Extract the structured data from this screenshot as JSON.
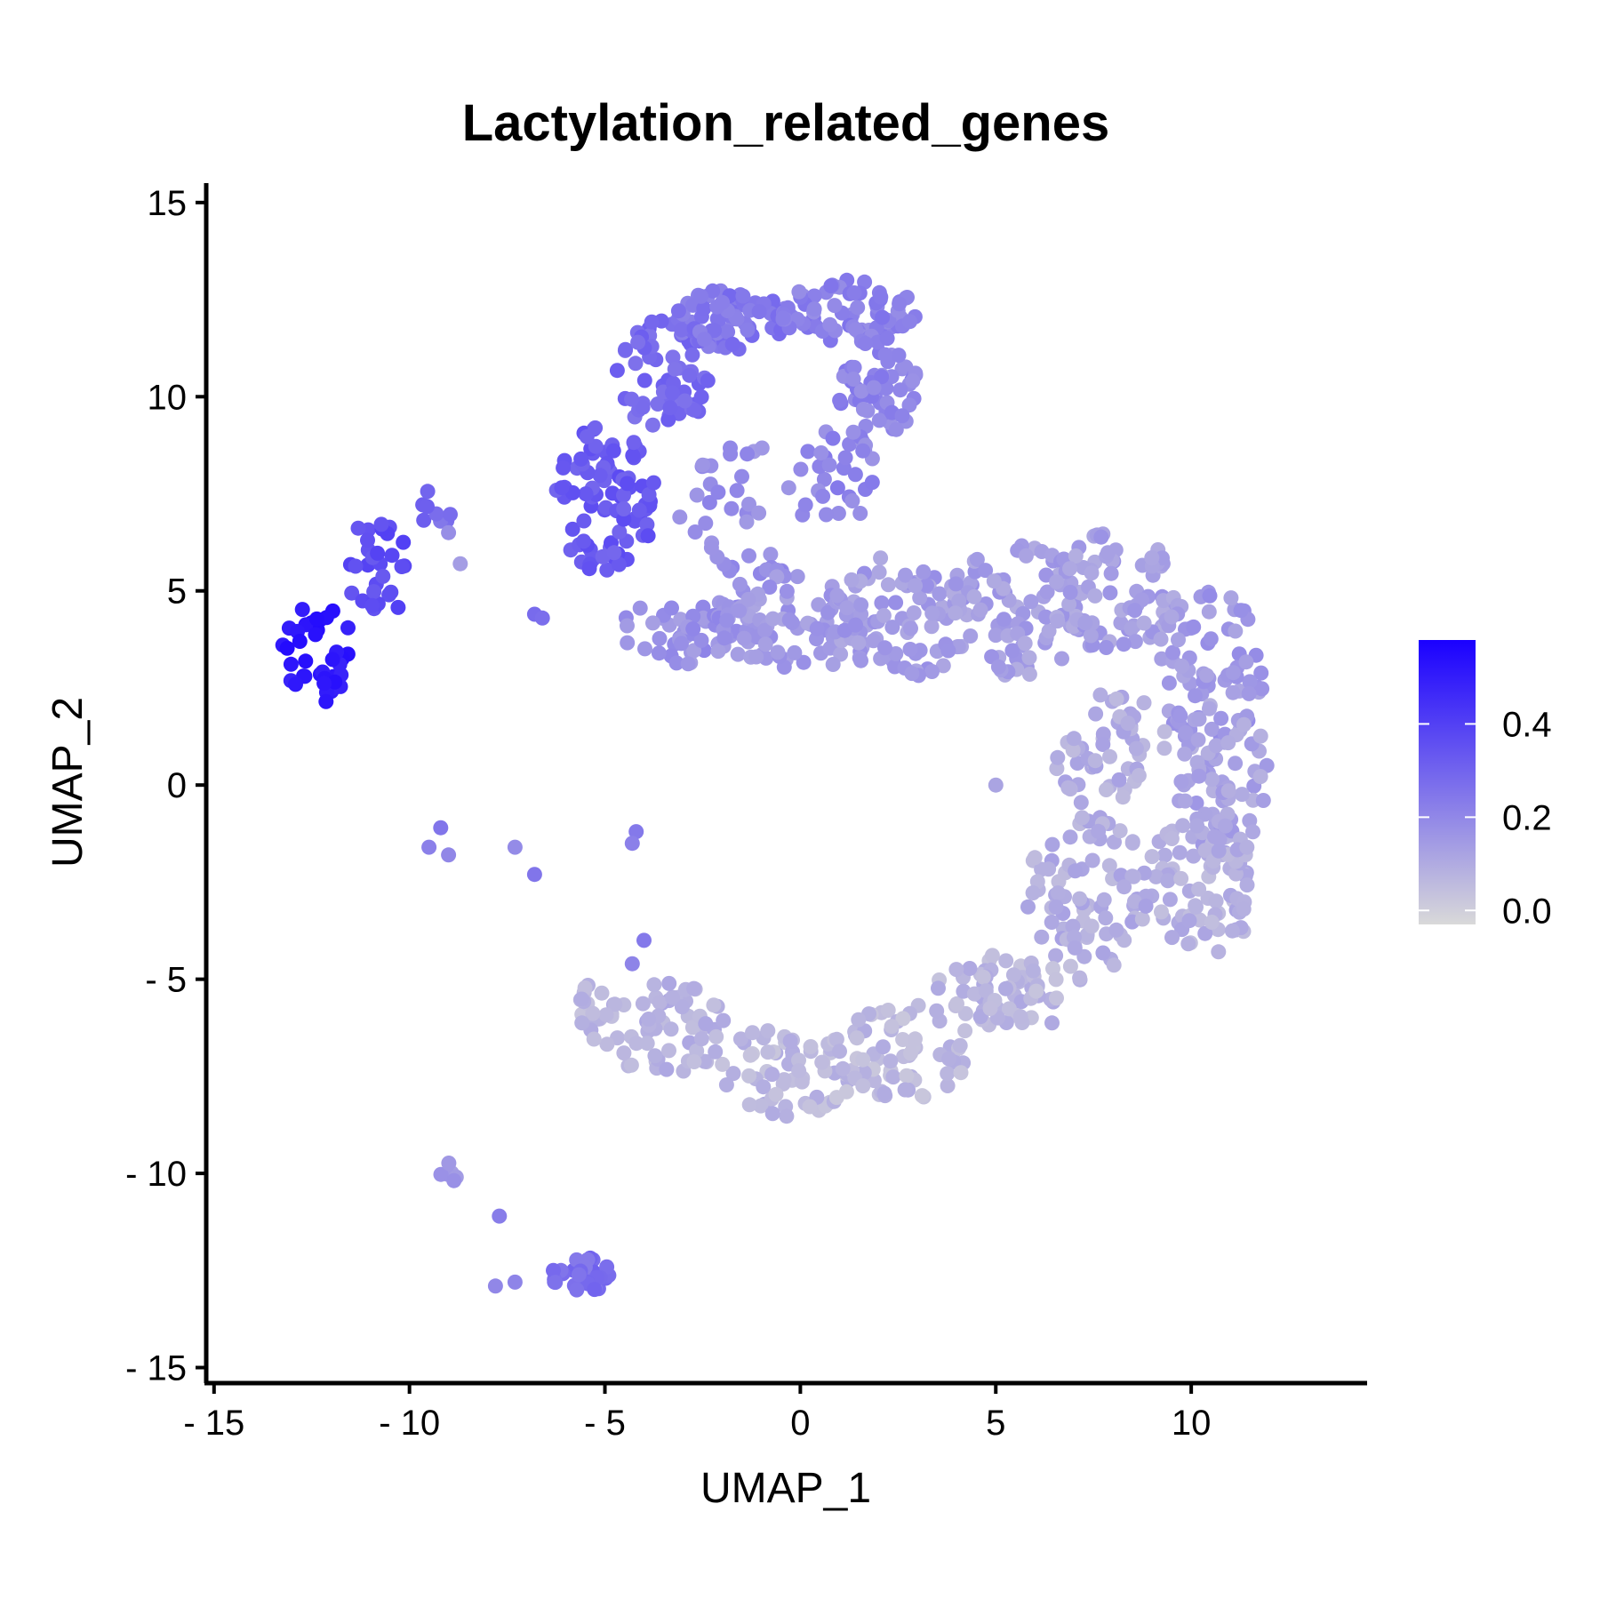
{
  "chart_data": {
    "type": "scatter",
    "title": "Lactylation_related_genes",
    "xlabel": "UMAP_1",
    "ylabel": "UMAP_2",
    "xlim": [
      -15.2,
      14.5
    ],
    "ylim": [
      -15.4,
      15.5
    ],
    "xticks": [
      {
        "value": -15,
        "label": "- 15"
      },
      {
        "value": -10,
        "label": "- 10"
      },
      {
        "value": -5,
        "label": "- 5"
      },
      {
        "value": 0,
        "label": "0"
      },
      {
        "value": 5,
        "label": "5"
      },
      {
        "value": 10,
        "label": "10"
      }
    ],
    "yticks": [
      {
        "value": 15,
        "label": "15"
      },
      {
        "value": 10,
        "label": "10"
      },
      {
        "value": 5,
        "label": "5"
      },
      {
        "value": 0,
        "label": "0"
      },
      {
        "value": -5,
        "label": "- 5"
      },
      {
        "value": -10,
        "label": "- 10"
      },
      {
        "value": -15,
        "label": "- 15"
      }
    ],
    "grid": false,
    "legend_position": "right",
    "color_scale": {
      "low_color": "#d9d9d9",
      "high_color": "#1a00ff",
      "min": -0.03,
      "max": 0.58,
      "ticks": [
        {
          "value": 0.4,
          "label": "0.4"
        },
        {
          "value": 0.2,
          "label": "0.2"
        },
        {
          "value": 0.0,
          "label": "0.0"
        }
      ]
    },
    "regions": [
      {
        "cx": -12.4,
        "cy": 3.4,
        "rx": 1.0,
        "ry": 1.3,
        "n": 38,
        "v": 0.52
      },
      {
        "cx": -10.7,
        "cy": 5.6,
        "rx": 1.0,
        "ry": 1.3,
        "n": 30,
        "v": 0.36
      },
      {
        "cx": -9.4,
        "cy": 7.0,
        "rx": 0.5,
        "ry": 0.6,
        "n": 8,
        "v": 0.28
      },
      {
        "cx": -5.0,
        "cy": 7.4,
        "rx": 1.3,
        "ry": 2.0,
        "n": 90,
        "v": 0.33
      },
      {
        "cx": -3.5,
        "cy": 10.5,
        "rx": 1.2,
        "ry": 1.5,
        "n": 60,
        "v": 0.28
      },
      {
        "cx": -1.8,
        "cy": 12.0,
        "rx": 1.6,
        "ry": 0.8,
        "n": 70,
        "v": 0.25
      },
      {
        "cx": 1.2,
        "cy": 12.2,
        "rx": 1.8,
        "ry": 0.8,
        "n": 70,
        "v": 0.22
      },
      {
        "cx": 2.0,
        "cy": 10.3,
        "rx": 1.1,
        "ry": 1.3,
        "n": 60,
        "v": 0.21
      },
      {
        "cx": 1.0,
        "cy": 8.0,
        "rx": 1.0,
        "ry": 1.2,
        "n": 30,
        "v": 0.2
      },
      {
        "cx": -1.3,
        "cy": 7.0,
        "rx": 1.8,
        "ry": 1.8,
        "n": 40,
        "v": 0.18
      },
      {
        "cx": -2.8,
        "cy": 4.0,
        "rx": 1.8,
        "ry": 0.9,
        "n": 60,
        "v": 0.17
      },
      {
        "cx": 0.0,
        "cy": 4.3,
        "rx": 2.2,
        "ry": 1.3,
        "n": 80,
        "v": 0.15
      },
      {
        "cx": 2.8,
        "cy": 4.4,
        "rx": 2.0,
        "ry": 1.6,
        "n": 80,
        "v": 0.14
      },
      {
        "cx": 5.5,
        "cy": 4.5,
        "rx": 1.8,
        "ry": 1.7,
        "n": 80,
        "v": 0.13
      },
      {
        "cx": 8.0,
        "cy": 5.0,
        "rx": 1.8,
        "ry": 1.5,
        "n": 80,
        "v": 0.13
      },
      {
        "cx": 10.5,
        "cy": 3.0,
        "rx": 1.4,
        "ry": 2.0,
        "n": 70,
        "v": 0.15
      },
      {
        "cx": 10.8,
        "cy": 0.2,
        "rx": 1.2,
        "ry": 2.0,
        "n": 70,
        "v": 0.12
      },
      {
        "cx": 8.0,
        "cy": 0.8,
        "rx": 1.5,
        "ry": 1.6,
        "n": 50,
        "v": 0.09
      },
      {
        "cx": 10.2,
        "cy": -2.6,
        "rx": 1.5,
        "ry": 1.8,
        "n": 80,
        "v": 0.08
      },
      {
        "cx": 7.4,
        "cy": -2.8,
        "rx": 1.6,
        "ry": 2.0,
        "n": 80,
        "v": 0.09
      },
      {
        "cx": 5.4,
        "cy": -5.3,
        "rx": 2.0,
        "ry": 1.0,
        "n": 70,
        "v": 0.07
      },
      {
        "cx": 2.6,
        "cy": -6.8,
        "rx": 1.8,
        "ry": 1.3,
        "n": 60,
        "v": 0.06
      },
      {
        "cx": -0.3,
        "cy": -7.4,
        "rx": 2.0,
        "ry": 1.2,
        "n": 70,
        "v": 0.06
      },
      {
        "cx": -3.4,
        "cy": -6.3,
        "rx": 1.7,
        "ry": 1.2,
        "n": 60,
        "v": 0.08
      },
      {
        "cx": -5.2,
        "cy": -5.8,
        "rx": 0.5,
        "ry": 0.8,
        "n": 20,
        "v": 0.06
      },
      {
        "cx": -9.0,
        "cy": -10.0,
        "rx": 0.3,
        "ry": 0.3,
        "n": 6,
        "v": 0.16
      },
      {
        "cx": -5.5,
        "cy": -12.6,
        "rx": 0.9,
        "ry": 0.5,
        "n": 30,
        "v": 0.27
      }
    ],
    "points": [
      {
        "x": -6.8,
        "y": 4.4,
        "v": 0.28
      },
      {
        "x": -6.6,
        "y": 4.3,
        "v": 0.27
      },
      {
        "x": -9.2,
        "y": -1.1,
        "v": 0.25
      },
      {
        "x": -9.5,
        "y": -1.6,
        "v": 0.22
      },
      {
        "x": -9.0,
        "y": -1.8,
        "v": 0.2
      },
      {
        "x": -7.3,
        "y": -1.6,
        "v": 0.19
      },
      {
        "x": -6.8,
        "y": -2.3,
        "v": 0.25
      },
      {
        "x": -4.2,
        "y": -1.2,
        "v": 0.24
      },
      {
        "x": -4.3,
        "y": -1.5,
        "v": 0.22
      },
      {
        "x": -4.0,
        "y": -4.0,
        "v": 0.24
      },
      {
        "x": -4.3,
        "y": -4.6,
        "v": 0.21
      },
      {
        "x": -7.7,
        "y": -11.1,
        "v": 0.23
      },
      {
        "x": -7.8,
        "y": -12.9,
        "v": 0.2
      },
      {
        "x": -7.3,
        "y": -12.8,
        "v": 0.21
      },
      {
        "x": -8.7,
        "y": 5.7,
        "v": 0.14
      },
      {
        "x": -9.0,
        "y": 6.5,
        "v": 0.18
      },
      {
        "x": 5.0,
        "y": 0.0,
        "v": 0.12
      },
      {
        "x": 7.0,
        "y": 1.2,
        "v": 0.1
      }
    ]
  }
}
